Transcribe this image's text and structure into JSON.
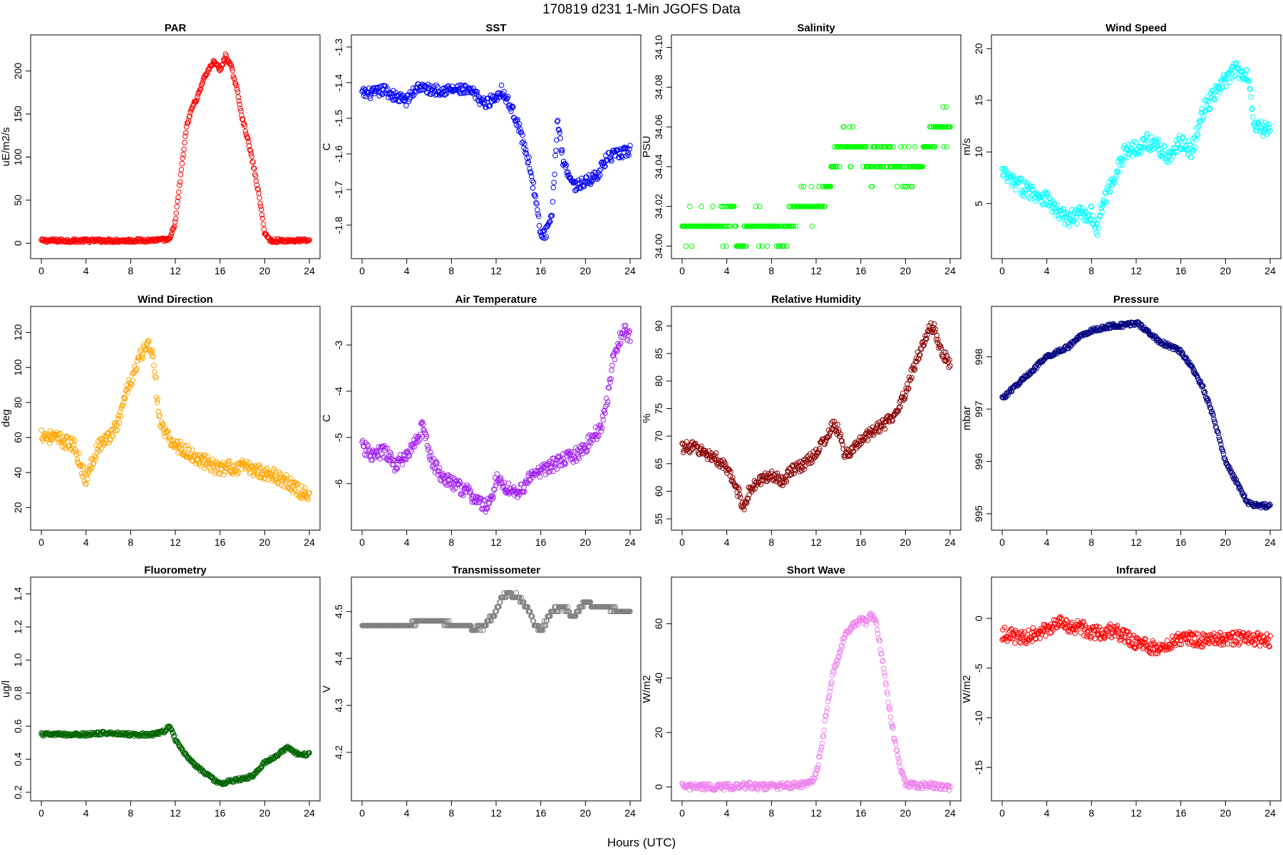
{
  "figure": {
    "title": "170819   d231   1-Min  JGOFS Data",
    "xlabel": "Hours (UTC)"
  },
  "chart_data": [
    {
      "type": "scatter",
      "title": "PAR",
      "ylabel": "uE/m2/s",
      "color": "#ff0000",
      "xlim": [
        0,
        24
      ],
      "xticks": [
        0,
        4,
        8,
        12,
        16,
        20,
        24
      ],
      "ylim": [
        -8,
        232
      ],
      "yticks": [
        0,
        50,
        100,
        150,
        200
      ],
      "ytick_labels": [
        "0",
        "50",
        "100",
        "150",
        "200"
      ],
      "noise": 2,
      "x": [
        0,
        4,
        8,
        11.5,
        12,
        12.5,
        13,
        13.5,
        14,
        14.5,
        15,
        15.5,
        16,
        16.5,
        17,
        17.5,
        18,
        18.5,
        19,
        19.5,
        20,
        20.5,
        24
      ],
      "y": [
        3,
        3,
        3,
        4,
        25,
        80,
        135,
        158,
        170,
        190,
        202,
        212,
        200,
        218,
        205,
        180,
        145,
        120,
        90,
        55,
        12,
        3,
        3
      ]
    },
    {
      "type": "scatter",
      "title": "SST",
      "ylabel": "C",
      "color": "#0000ff",
      "xlim": [
        0,
        24
      ],
      "xticks": [
        0,
        4,
        8,
        12,
        16,
        20,
        24
      ],
      "ylim": [
        -1.87,
        -1.29
      ],
      "yticks": [
        -1.8,
        -1.7,
        -1.6,
        -1.5,
        -1.4,
        -1.3
      ],
      "ytick_labels": [
        "-1.8",
        "-1.7",
        "-1.6",
        "-1.5",
        "-1.4",
        "-1.3"
      ],
      "noise": 0.015,
      "x": [
        0,
        1,
        2,
        3,
        4,
        5,
        6,
        7,
        8,
        9,
        10,
        11,
        12,
        12.5,
        13,
        13.5,
        14,
        15,
        15.5,
        16,
        16.5,
        17,
        17.5,
        18,
        19,
        20,
        21,
        22,
        23,
        24
      ],
      "y": [
        -1.43,
        -1.43,
        -1.42,
        -1.44,
        -1.45,
        -1.41,
        -1.42,
        -1.42,
        -1.42,
        -1.42,
        -1.43,
        -1.46,
        -1.44,
        -1.42,
        -1.45,
        -1.48,
        -1.52,
        -1.63,
        -1.72,
        -1.83,
        -1.82,
        -1.78,
        -1.5,
        -1.62,
        -1.69,
        -1.68,
        -1.66,
        -1.61,
        -1.6,
        -1.59
      ]
    },
    {
      "type": "scatter",
      "title": "Salinity",
      "ylabel": "PSU",
      "color": "#00ff00",
      "xlim": [
        0,
        24
      ],
      "xticks": [
        0,
        4,
        8,
        12,
        16,
        20,
        24
      ],
      "ylim": [
        33.998,
        34.102
      ],
      "yticks": [
        34.0,
        34.02,
        34.04,
        34.06,
        34.08,
        34.1
      ],
      "ytick_labels": [
        "34.00",
        "34.02",
        "34.04",
        "34.06",
        "34.08",
        "34.10"
      ],
      "quantize": 0.01,
      "noise": 0.006,
      "x": [
        0,
        2,
        4,
        4.5,
        5,
        6,
        8,
        9,
        10,
        11,
        12,
        13,
        14,
        15,
        16,
        17,
        18,
        19,
        20,
        21,
        22,
        23,
        24
      ],
      "y": [
        34.01,
        34.01,
        34.01,
        34.02,
        34.0,
        34.01,
        34.01,
        34.0,
        34.02,
        34.02,
        34.02,
        34.03,
        34.05,
        34.05,
        34.05,
        34.04,
        34.05,
        34.04,
        34.04,
        34.04,
        34.05,
        34.06,
        34.06
      ]
    },
    {
      "type": "scatter",
      "title": "Wind Speed",
      "ylabel": "m/s",
      "color": "#00ffff",
      "xlim": [
        0,
        24
      ],
      "xticks": [
        0,
        4,
        8,
        12,
        16,
        20,
        24
      ],
      "ylim": [
        0.5,
        20.5
      ],
      "yticks": [
        5,
        10,
        15,
        20
      ],
      "ytick_labels": [
        "5",
        "10",
        "15",
        "20"
      ],
      "noise": 0.8,
      "x": [
        0,
        1,
        2,
        3,
        4,
        5,
        6,
        7,
        8,
        8.5,
        9,
        10,
        11,
        12,
        13,
        14,
        15,
        16,
        17,
        18,
        19,
        20,
        21,
        22,
        22.5,
        23,
        24
      ],
      "y": [
        8,
        7,
        6.5,
        6,
        5.5,
        4,
        3.5,
        4,
        4,
        2.5,
        5,
        7.5,
        10,
        10.5,
        11,
        10.5,
        9.5,
        11,
        10,
        14,
        15.5,
        17,
        18,
        17.5,
        13,
        12.5,
        12
      ]
    },
    {
      "type": "scatter",
      "title": "Wind Direction",
      "ylabel": "deg",
      "color": "#ffa500",
      "xlim": [
        0,
        24
      ],
      "xticks": [
        0,
        4,
        8,
        12,
        16,
        20,
        24
      ],
      "ylim": [
        12,
        130
      ],
      "yticks": [
        20,
        40,
        60,
        80,
        100,
        120
      ],
      "ytick_labels": [
        "20",
        "40",
        "60",
        "80",
        "100",
        "120"
      ],
      "noise": 4,
      "x": [
        0,
        1,
        2,
        3,
        3.5,
        4,
        5,
        6,
        7,
        7.5,
        8,
        8.5,
        9,
        9.5,
        10,
        10.5,
        11,
        12,
        13,
        14,
        15,
        16,
        17,
        18,
        19,
        20,
        21,
        22,
        23,
        24
      ],
      "y": [
        62,
        60,
        58,
        55,
        45,
        35,
        55,
        60,
        70,
        85,
        92,
        100,
        108,
        112,
        110,
        72,
        62,
        56,
        52,
        48,
        45,
        42,
        43,
        43,
        42,
        40,
        38,
        35,
        30,
        26
      ]
    },
    {
      "type": "scatter",
      "title": "Air Temperature",
      "ylabel": "C",
      "color": "#a020f0",
      "xlim": [
        0,
        24
      ],
      "xticks": [
        0,
        4,
        8,
        12,
        16,
        20,
        24
      ],
      "ylim": [
        -6.82,
        -2.35
      ],
      "yticks": [
        -6,
        -5,
        -4,
        -3
      ],
      "ytick_labels": [
        "-6",
        "-5",
        "-4",
        "-3"
      ],
      "noise": 0.15,
      "x": [
        0,
        1,
        2,
        3,
        4,
        5,
        5.5,
        6,
        7,
        8,
        9,
        10,
        11,
        11.5,
        12,
        13,
        14,
        15,
        16,
        17,
        18,
        19,
        20,
        21,
        21.5,
        22,
        22.5,
        23,
        23.5,
        24
      ],
      "y": [
        -5.2,
        -5.4,
        -5.3,
        -5.6,
        -5.4,
        -5.0,
        -4.7,
        -5.4,
        -5.8,
        -6.0,
        -6.1,
        -6.3,
        -6.5,
        -6.4,
        -5.9,
        -6.1,
        -6.2,
        -5.9,
        -5.7,
        -5.6,
        -5.5,
        -5.4,
        -5.2,
        -4.9,
        -4.7,
        -4.1,
        -3.3,
        -2.9,
        -2.7,
        -2.8
      ]
    },
    {
      "type": "scatter",
      "title": "Relative Humidity",
      "ylabel": "%",
      "color": "#8b0000",
      "xlim": [
        0,
        24
      ],
      "xticks": [
        0,
        4,
        8,
        12,
        16,
        20,
        24
      ],
      "ylim": [
        54.5,
        92
      ],
      "yticks": [
        55,
        60,
        65,
        70,
        75,
        80,
        85,
        90
      ],
      "ytick_labels": [
        "55",
        "60",
        "65",
        "70",
        "75",
        "80",
        "85",
        "90"
      ],
      "noise": 1.0,
      "x": [
        0,
        1,
        2,
        3,
        4,
        5,
        5.5,
        6,
        7,
        8,
        9,
        10,
        11,
        12,
        13,
        13.5,
        14,
        14.5,
        15,
        16,
        17,
        18,
        19,
        20,
        21,
        22,
        22.5,
        23,
        24
      ],
      "y": [
        68,
        68,
        67,
        66,
        64,
        60,
        57,
        60,
        62,
        63,
        62,
        64,
        65,
        67,
        70,
        72,
        71,
        67,
        67,
        69,
        71,
        72,
        74,
        78,
        84,
        89,
        90,
        86,
        83
      ]
    },
    {
      "type": "scatter",
      "title": "Pressure",
      "ylabel": "mbar",
      "color": "#000080",
      "xlim": [
        0,
        24
      ],
      "xticks": [
        0,
        4,
        8,
        12,
        16,
        20,
        24
      ],
      "ylim": [
        994.85,
        998.8
      ],
      "yticks": [
        995,
        996,
        997,
        998
      ],
      "ytick_labels": [
        "995",
        "996",
        "997",
        "998"
      ],
      "noise": 0.04,
      "x": [
        0,
        1,
        2,
        3,
        4,
        5,
        6,
        7,
        8,
        9,
        10,
        11,
        12,
        13,
        14,
        15,
        16,
        17,
        18,
        19,
        20,
        21,
        22,
        23,
        24
      ],
      "y": [
        997.2,
        997.4,
        997.6,
        997.8,
        998.0,
        998.1,
        998.2,
        998.4,
        998.5,
        998.55,
        998.6,
        998.6,
        998.65,
        998.5,
        998.3,
        998.2,
        998.1,
        997.8,
        997.4,
        996.8,
        996.0,
        995.6,
        995.2,
        995.15,
        995.15
      ]
    },
    {
      "type": "scatter",
      "title": "Fluorometry",
      "ylabel": "ug/l",
      "color": "#006400",
      "xlim": [
        0,
        24
      ],
      "xticks": [
        0,
        4,
        8,
        12,
        16,
        20,
        24
      ],
      "ylim": [
        0.2,
        1.45
      ],
      "yticks": [
        0.2,
        0.4,
        0.6,
        0.8,
        1.0,
        1.2,
        1.4
      ],
      "ytick_labels": [
        "0.2",
        "0.4",
        "0.6",
        "0.8",
        "1.0",
        "1.2",
        "1.4"
      ],
      "noise": 0.01,
      "x": [
        0,
        2,
        4,
        6,
        8,
        10,
        11,
        11.5,
        12,
        13,
        14,
        15,
        16,
        17,
        18,
        19,
        20,
        21,
        22,
        23,
        24
      ],
      "y": [
        0.55,
        0.55,
        0.55,
        0.56,
        0.55,
        0.55,
        0.57,
        0.6,
        0.52,
        0.42,
        0.35,
        0.3,
        0.25,
        0.27,
        0.28,
        0.3,
        0.38,
        0.42,
        0.47,
        0.43,
        0.43
      ]
    },
    {
      "type": "scatter",
      "title": "Transmissometer",
      "ylabel": "V",
      "color": "#808080",
      "xlim": [
        0,
        24
      ],
      "xticks": [
        0,
        4,
        8,
        12,
        16,
        20,
        24
      ],
      "ylim": [
        4.115,
        4.555
      ],
      "yticks": [
        4.2,
        4.3,
        4.4,
        4.5
      ],
      "ytick_labels": [
        "4.2",
        "4.3",
        "4.4",
        "4.5"
      ],
      "quantize": 0.01,
      "noise": 0.004,
      "x": [
        0,
        4,
        5,
        7,
        8,
        9.5,
        10,
        11,
        12,
        12.5,
        13,
        14,
        15,
        15.5,
        16,
        17,
        18,
        19,
        20,
        21,
        22,
        23,
        24
      ],
      "y": [
        4.47,
        4.47,
        4.48,
        4.48,
        4.47,
        4.47,
        4.46,
        4.47,
        4.5,
        4.53,
        4.54,
        4.53,
        4.5,
        4.47,
        4.46,
        4.5,
        4.51,
        4.49,
        4.52,
        4.51,
        4.51,
        4.5,
        4.5
      ]
    },
    {
      "type": "scatter",
      "title": "Short Wave",
      "ylabel": "W/m2",
      "color": "#ee82ee",
      "xlim": [
        0,
        24
      ],
      "xticks": [
        0,
        4,
        8,
        12,
        16,
        20,
        24
      ],
      "ylim": [
        -2,
        74
      ],
      "yticks": [
        0,
        20,
        40,
        60
      ],
      "ytick_labels": [
        "0",
        "20",
        "40",
        "60"
      ],
      "noise": 1.2,
      "x": [
        0,
        4,
        6,
        7,
        10,
        11.5,
        12,
        12.5,
        13,
        13.5,
        14,
        14.5,
        15,
        15.5,
        16,
        16.5,
        17,
        17.5,
        18,
        18.5,
        19,
        19.5,
        20,
        24
      ],
      "y": [
        0,
        0,
        0.5,
        0,
        0.5,
        1,
        5,
        15,
        30,
        42,
        48,
        55,
        58,
        60,
        62,
        60,
        64,
        58,
        45,
        30,
        18,
        8,
        1,
        0
      ]
    },
    {
      "type": "scatter",
      "title": "Infrared",
      "ylabel": "W/m2",
      "color": "#ff0000",
      "xlim": [
        0,
        24
      ],
      "xticks": [
        0,
        4,
        8,
        12,
        16,
        20,
        24
      ],
      "ylim": [
        -17.5,
        3.3
      ],
      "yticks": [
        -15,
        -10,
        -5,
        0
      ],
      "ytick_labels": [
        "-15",
        "-10",
        "-5",
        "0"
      ],
      "noise": 0.7,
      "x": [
        0,
        2,
        4,
        5,
        6,
        7,
        8,
        10,
        12,
        14,
        15,
        16,
        18,
        20,
        22,
        24
      ],
      "y": [
        -1.5,
        -2,
        -1,
        -0.3,
        -1,
        -0.8,
        -1.5,
        -1.2,
        -2.5,
        -3,
        -2.5,
        -2,
        -2.2,
        -2,
        -2,
        -2.2
      ]
    }
  ]
}
